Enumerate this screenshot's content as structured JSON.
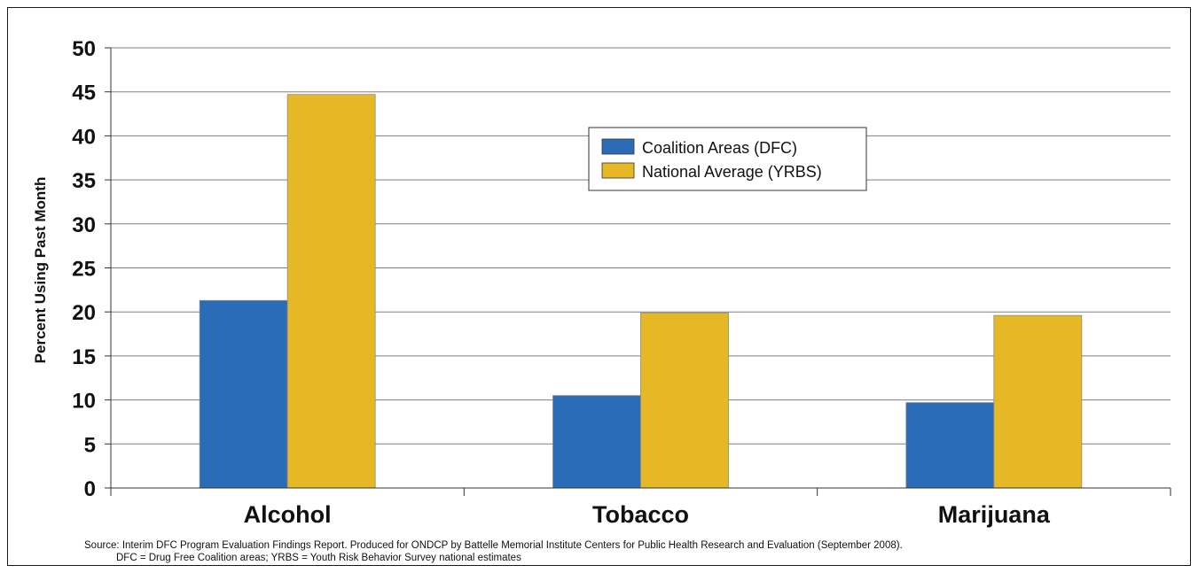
{
  "chart_data": {
    "type": "bar",
    "categories": [
      "Alcohol",
      "Tobacco",
      "Marijuana"
    ],
    "series": [
      {
        "name": "Coalition Areas (DFC)",
        "color": "#2b6cb6",
        "values": [
          21.3,
          10.5,
          9.7
        ]
      },
      {
        "name": "National Average (YRBS)",
        "color": "#e6b825",
        "values": [
          44.7,
          19.9,
          19.6
        ]
      }
    ],
    "title": "",
    "xlabel": "",
    "ylabel": "Percent Using Past Month",
    "ylim": [
      0,
      50
    ],
    "yticks": [
      "0",
      "5",
      "10",
      "15",
      "20",
      "25",
      "30",
      "35",
      "40",
      "45",
      "50"
    ],
    "grid": true,
    "legend_position": "top-center"
  },
  "source": {
    "line1": "Source:  Interim DFC Program Evaluation Findings Report.  Produced for ONDCP by Battelle Memorial Institute Centers for Public Health Research and Evaluation (September 2008).",
    "line2": "DFC = Drug Free Coalition areas; YRBS = Youth Risk Behavior Survey national estimates"
  }
}
